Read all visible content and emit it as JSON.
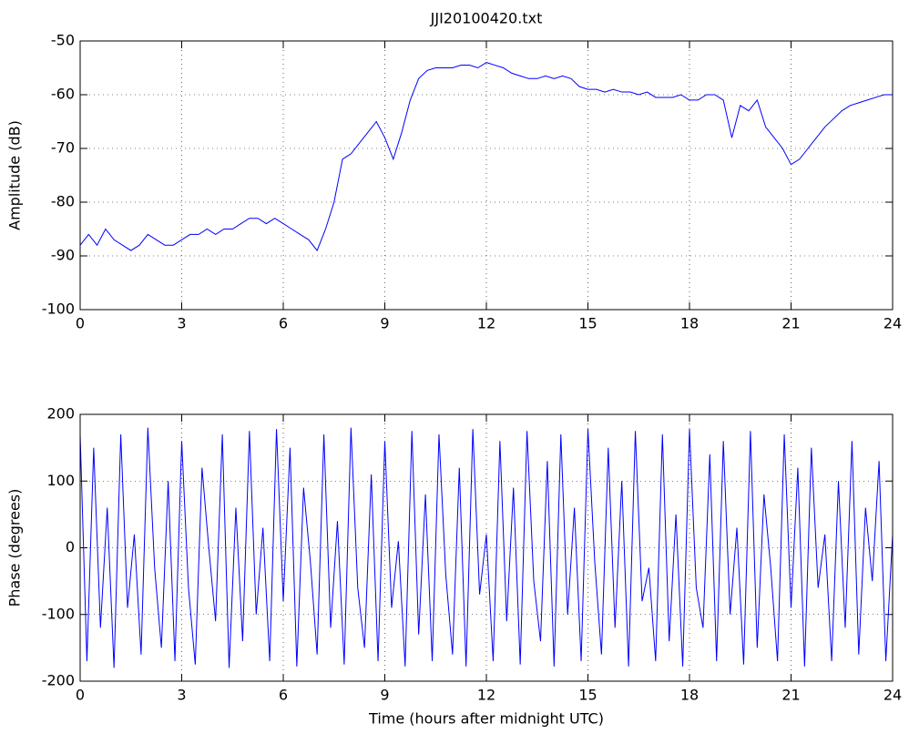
{
  "chart_data": [
    {
      "type": "line",
      "title": "JJI20100420.txt",
      "ylabel": "Amplitude (dB)",
      "x": [
        0,
        0.25,
        0.5,
        0.75,
        1,
        1.25,
        1.5,
        1.75,
        2,
        2.25,
        2.5,
        2.75,
        3,
        3.25,
        3.5,
        3.75,
        4,
        4.25,
        4.5,
        4.75,
        5,
        5.25,
        5.5,
        5.75,
        6,
        6.25,
        6.5,
        6.75,
        7,
        7.25,
        7.5,
        7.75,
        8,
        8.25,
        8.5,
        8.75,
        9,
        9.25,
        9.5,
        9.75,
        10,
        10.25,
        10.5,
        10.75,
        11,
        11.25,
        11.5,
        11.75,
        12,
        12.25,
        12.5,
        12.75,
        13,
        13.25,
        13.5,
        13.75,
        14,
        14.25,
        14.5,
        14.75,
        15,
        15.25,
        15.5,
        15.75,
        16,
        16.25,
        16.5,
        16.75,
        17,
        17.25,
        17.5,
        17.75,
        18,
        18.25,
        18.5,
        18.75,
        19,
        19.25,
        19.5,
        19.75,
        20,
        20.25,
        20.5,
        20.75,
        21,
        21.25,
        21.5,
        21.75,
        22,
        22.25,
        22.5,
        22.75,
        23,
        23.25,
        23.5,
        23.75,
        24
      ],
      "values": [
        -88,
        -86,
        -88,
        -85,
        -87,
        -88,
        -89,
        -88,
        -86,
        -87,
        -88,
        -88,
        -87,
        -86,
        -86,
        -85,
        -86,
        -85,
        -85,
        -84,
        -83,
        -83,
        -84,
        -83,
        -84,
        -85,
        -86,
        -87,
        -89,
        -85,
        -80,
        -72,
        -71,
        -69,
        -67,
        -65,
        -68,
        -72,
        -67,
        -61,
        -57,
        -55.5,
        -55,
        -55,
        -55,
        -54.5,
        -54.5,
        -55,
        -54,
        -54.5,
        -55,
        -56,
        -56.5,
        -57,
        -57,
        -56.5,
        -57,
        -56.5,
        -57,
        -58.5,
        -59,
        -59,
        -59.5,
        -59,
        -59.5,
        -59.5,
        -60,
        -59.5,
        -60.5,
        -60.5,
        -60.5,
        -60,
        -61,
        -61,
        -60,
        -60,
        -61,
        -68,
        -62,
        -63,
        -61,
        -66,
        -68,
        -70,
        -73,
        -72,
        -70,
        -68,
        -66,
        -64.5,
        -63,
        -62,
        -61.5,
        -61,
        -60.5,
        -60,
        -60
      ],
      "color": "#0000ff",
      "xlim": [
        0,
        24
      ],
      "xticks": [
        0,
        3,
        6,
        9,
        12,
        15,
        18,
        21,
        24
      ],
      "ylim": [
        -100,
        -50
      ],
      "yticks": [
        -100,
        -90,
        -80,
        -70,
        -60,
        -50
      ],
      "grid": true
    },
    {
      "type": "line",
      "xlabel": "Time (hours after midnight UTC)",
      "ylabel": "Phase (degrees)",
      "x": [
        0,
        0.2,
        0.4,
        0.6,
        0.8,
        1,
        1.2,
        1.4,
        1.6,
        1.8,
        2,
        2.2,
        2.4,
        2.6,
        2.8,
        3,
        3.2,
        3.4,
        3.6,
        3.8,
        4,
        4.2,
        4.4,
        4.6,
        4.8,
        5,
        5.2,
        5.4,
        5.6,
        5.8,
        6,
        6.2,
        6.4,
        6.6,
        6.8,
        7,
        7.2,
        7.4,
        7.6,
        7.8,
        8,
        8.2,
        8.4,
        8.6,
        8.8,
        9,
        9.2,
        9.4,
        9.6,
        9.8,
        10,
        10.2,
        10.4,
        10.6,
        10.8,
        11,
        11.2,
        11.4,
        11.6,
        11.8,
        12,
        12.2,
        12.4,
        12.6,
        12.8,
        13,
        13.2,
        13.4,
        13.6,
        13.8,
        14,
        14.2,
        14.4,
        14.6,
        14.8,
        15,
        15.2,
        15.4,
        15.6,
        15.8,
        16,
        16.2,
        16.4,
        16.6,
        16.8,
        17,
        17.2,
        17.4,
        17.6,
        17.8,
        18,
        18.2,
        18.4,
        18.6,
        18.8,
        19,
        19.2,
        19.4,
        19.6,
        19.8,
        20,
        20.2,
        20.4,
        20.6,
        20.8,
        21,
        21.2,
        21.4,
        21.6,
        21.8,
        22,
        22.2,
        22.4,
        22.6,
        22.8,
        23,
        23.2,
        23.4,
        23.6,
        23.8,
        24
      ],
      "values": [
        170,
        -170,
        150,
        -120,
        60,
        -180,
        170,
        -90,
        20,
        -160,
        180,
        -30,
        -150,
        100,
        -170,
        160,
        -60,
        -175,
        120,
        0,
        -110,
        170,
        -180,
        60,
        -140,
        175,
        -100,
        30,
        -170,
        178,
        -80,
        150,
        -178,
        90,
        -20,
        -160,
        170,
        -120,
        40,
        -175,
        180,
        -60,
        -150,
        110,
        -170,
        160,
        -90,
        10,
        -178,
        175,
        -130,
        80,
        -170,
        170,
        -40,
        -160,
        120,
        -178,
        178,
        -70,
        20,
        -170,
        160,
        -110,
        90,
        -175,
        175,
        -50,
        -140,
        130,
        -178,
        170,
        -100,
        60,
        -170,
        178,
        -20,
        -160,
        150,
        -120,
        100,
        -178,
        175,
        -80,
        -30,
        -170,
        170,
        -140,
        50,
        -178,
        178,
        -60,
        -120,
        140,
        -170,
        160,
        -100,
        30,
        -175,
        175,
        -150,
        80,
        -30,
        -170,
        170,
        -90,
        120,
        -178,
        150,
        -60,
        20,
        -170,
        100,
        -120,
        160,
        -160,
        60,
        -50,
        130,
        -170,
        20
      ],
      "color": "#0000ff",
      "xlim": [
        0,
        24
      ],
      "xticks": [
        0,
        3,
        6,
        9,
        12,
        15,
        18,
        21,
        24
      ],
      "ylim": [
        -200,
        200
      ],
      "yticks": [
        -200,
        -100,
        0,
        100,
        200
      ],
      "grid": true
    }
  ]
}
